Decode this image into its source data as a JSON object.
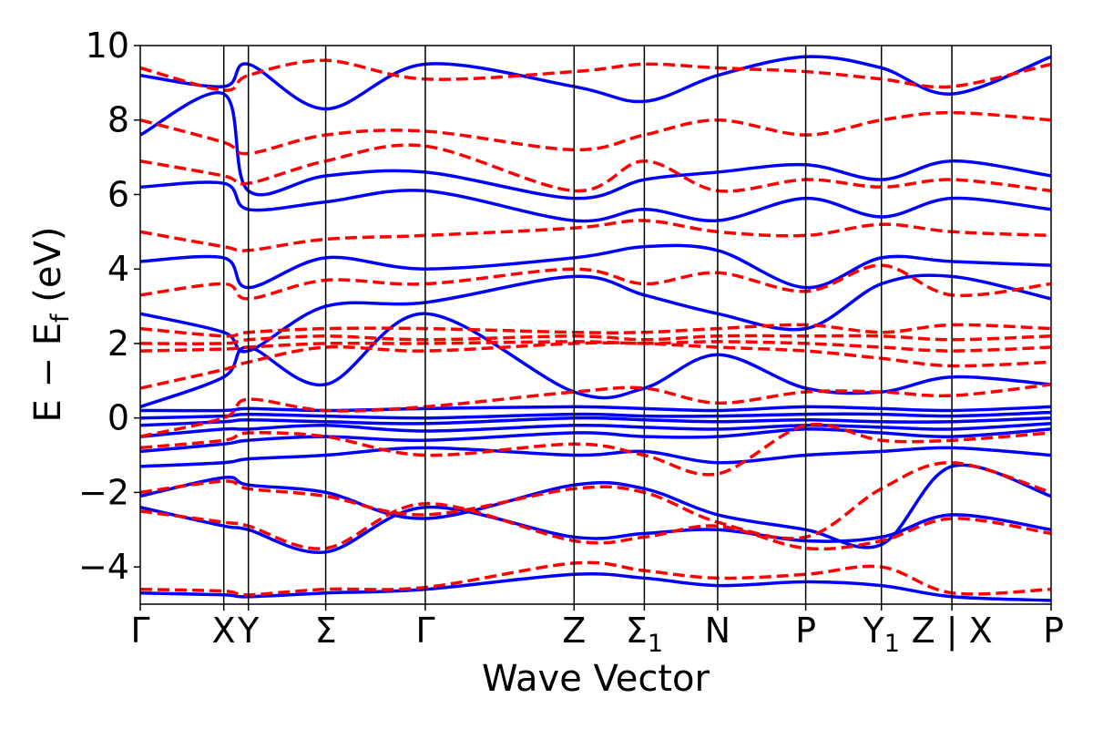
{
  "chart_data": {
    "type": "line",
    "title": "",
    "xlabel": "Wave Vector",
    "ylabel": "E − E_f (eV)",
    "ylabel_parts": {
      "main": "E − E",
      "sub": "f",
      "unit": " (eV)"
    },
    "ylim": [
      -5,
      10
    ],
    "yticks": [
      -4,
      -2,
      0,
      2,
      4,
      6,
      8,
      10
    ],
    "ytick_labels": [
      "−4",
      "−2",
      "0",
      "2",
      "4",
      "6",
      "8",
      "10"
    ],
    "xlim": [
      0,
      1
    ],
    "kpoints": [
      {
        "label": "Γ",
        "sub": "",
        "x": 0.0
      },
      {
        "label": "X",
        "sub": "",
        "x": 0.0917
      },
      {
        "label": "Y",
        "sub": "",
        "x": 0.1187
      },
      {
        "label": "Σ",
        "sub": "",
        "x": 0.2036
      },
      {
        "label": "Γ",
        "sub": "",
        "x": 0.3129
      },
      {
        "label": "Z",
        "sub": "",
        "x": 0.4763
      },
      {
        "label": "Σ",
        "sub": "1",
        "x": 0.5534
      },
      {
        "label": "N",
        "sub": "",
        "x": 0.6339
      },
      {
        "label": "P",
        "sub": "",
        "x": 0.7306
      },
      {
        "label": "Y",
        "sub": "1",
        "x": 0.8137
      },
      {
        "label": "Z | X",
        "sub": "",
        "x": 0.8911
      },
      {
        "label": "P",
        "sub": "",
        "x": 1.0
      }
    ],
    "series": [
      {
        "style": "solid",
        "color": "#0000ff",
        "bands": [
          [
            -4.7,
            -4.75,
            -4.8,
            -4.7,
            -4.6,
            -4.2,
            -4.3,
            -4.5,
            -4.4,
            -4.5,
            -4.8,
            -4.9
          ],
          [
            -2.4,
            -2.9,
            -3.0,
            -3.6,
            -2.4,
            -3.2,
            -3.1,
            -3.0,
            -3.3,
            -3.2,
            -2.6,
            -3.0
          ],
          [
            -2.1,
            -1.6,
            -1.8,
            -2.0,
            -2.7,
            -1.8,
            -1.9,
            -2.6,
            -3.0,
            -3.4,
            -1.3,
            -2.1
          ],
          [
            -1.3,
            -1.2,
            -1.1,
            -1.0,
            -0.8,
            -1.0,
            -0.9,
            -1.2,
            -1.0,
            -0.9,
            -0.8,
            -1.0
          ],
          [
            -0.9,
            -0.7,
            -0.6,
            -0.5,
            -0.6,
            -0.4,
            -0.5,
            -0.5,
            -0.3,
            -0.4,
            -0.5,
            -0.3
          ],
          [
            -0.5,
            -0.3,
            -0.3,
            -0.2,
            -0.35,
            -0.2,
            -0.25,
            -0.3,
            -0.2,
            -0.25,
            -0.3,
            -0.15
          ],
          [
            -0.2,
            -0.1,
            -0.05,
            -0.1,
            -0.15,
            0.0,
            -0.05,
            -0.1,
            -0.05,
            -0.1,
            -0.1,
            0.0
          ],
          [
            0.0,
            0.05,
            0.1,
            0.05,
            0.0,
            0.1,
            0.05,
            0.05,
            0.1,
            0.1,
            0.05,
            0.15
          ],
          [
            0.2,
            0.2,
            0.25,
            0.2,
            0.25,
            0.3,
            0.25,
            0.2,
            0.3,
            0.25,
            0.2,
            0.3
          ],
          [
            0.3,
            1.1,
            1.9,
            0.9,
            2.8,
            0.7,
            0.8,
            1.7,
            0.8,
            0.7,
            1.1,
            0.9
          ],
          [
            2.8,
            2.3,
            1.8,
            3.0,
            3.1,
            3.8,
            3.3,
            2.8,
            2.4,
            3.6,
            3.8,
            3.2
          ],
          [
            4.2,
            4.3,
            3.5,
            4.3,
            4.0,
            4.3,
            4.6,
            4.5,
            3.5,
            4.3,
            4.2,
            4.1
          ],
          [
            6.2,
            6.3,
            5.6,
            5.8,
            6.1,
            5.3,
            5.6,
            5.3,
            5.9,
            5.4,
            5.9,
            5.6
          ],
          [
            7.6,
            8.7,
            6.1,
            6.5,
            6.6,
            5.9,
            6.4,
            6.6,
            6.8,
            6.4,
            6.9,
            6.5
          ],
          [
            9.2,
            8.9,
            9.5,
            8.3,
            9.5,
            8.9,
            8.5,
            9.2,
            9.7,
            9.4,
            8.7,
            9.7
          ]
        ]
      },
      {
        "style": "dashed",
        "color": "#ff0000",
        "bands": [
          [
            -4.6,
            -4.65,
            -4.75,
            -4.6,
            -4.55,
            -3.9,
            -4.1,
            -4.3,
            -4.2,
            -4.0,
            -4.7,
            -4.6
          ],
          [
            -2.5,
            -2.8,
            -2.9,
            -3.5,
            -2.3,
            -3.3,
            -3.2,
            -2.9,
            -3.5,
            -3.3,
            -2.7,
            -3.1
          ],
          [
            -2.0,
            -1.7,
            -1.9,
            -2.1,
            -2.6,
            -1.9,
            -2.0,
            -2.8,
            -3.2,
            -1.9,
            -1.2,
            -2.0
          ],
          [
            -0.8,
            -0.6,
            -0.4,
            -0.5,
            -1.0,
            -0.7,
            -1.0,
            -1.5,
            -0.2,
            -0.6,
            -0.6,
            -0.4
          ],
          [
            -0.5,
            0.0,
            0.5,
            0.2,
            0.3,
            0.7,
            0.8,
            0.4,
            0.7,
            0.7,
            0.6,
            0.9
          ],
          [
            0.8,
            1.3,
            1.5,
            1.9,
            1.8,
            2.0,
            2.0,
            1.9,
            1.8,
            1.6,
            1.4,
            1.5
          ],
          [
            1.8,
            1.85,
            1.9,
            2.0,
            2.0,
            2.05,
            2.0,
            2.05,
            2.0,
            1.9,
            1.8,
            1.9
          ],
          [
            2.0,
            2.0,
            2.1,
            2.2,
            2.1,
            2.2,
            2.1,
            2.2,
            2.2,
            2.2,
            2.1,
            2.2
          ],
          [
            2.4,
            2.2,
            2.3,
            2.4,
            2.4,
            2.3,
            2.3,
            2.4,
            2.5,
            2.3,
            2.5,
            2.4
          ],
          [
            3.3,
            3.6,
            3.2,
            3.7,
            3.6,
            4.0,
            3.6,
            3.9,
            3.4,
            4.1,
            3.3,
            3.6
          ],
          [
            5.0,
            4.6,
            4.5,
            4.8,
            4.9,
            5.1,
            5.3,
            5.0,
            4.9,
            5.2,
            5.0,
            4.9
          ],
          [
            6.9,
            6.5,
            6.3,
            6.9,
            7.3,
            6.1,
            6.9,
            6.1,
            6.4,
            6.2,
            6.4,
            6.1
          ],
          [
            8.0,
            7.4,
            7.1,
            7.6,
            7.7,
            7.2,
            7.6,
            8.0,
            7.6,
            8.0,
            8.2,
            8.0
          ],
          [
            9.4,
            8.8,
            9.2,
            9.6,
            9.1,
            9.3,
            9.5,
            9.4,
            9.3,
            9.1,
            8.9,
            9.5
          ]
        ]
      }
    ],
    "grid": false,
    "legend": "none"
  }
}
